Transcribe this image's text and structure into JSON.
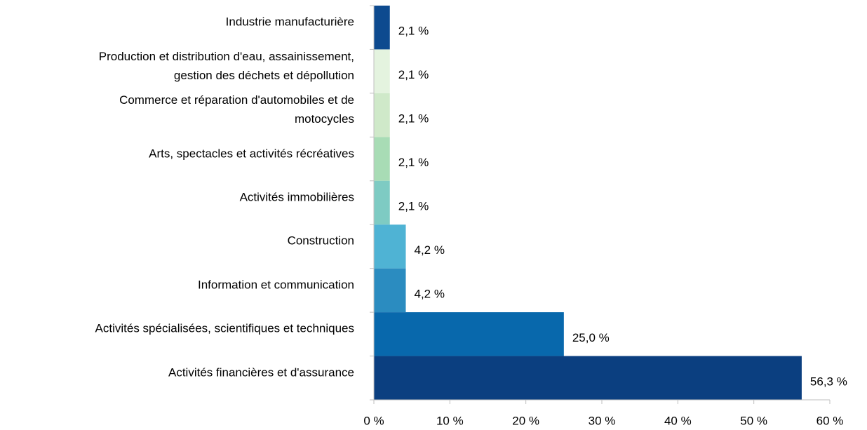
{
  "chart_data": {
    "type": "hbar",
    "categories": [
      "Industrie manufacturière",
      "Production et distribution d'eau, assainissement,\ngestion des déchets et dépollution",
      "Commerce et réparation d'automobiles et de\nmotocycles",
      "Arts, spectacles et activités récréatives",
      "Activités immobilières",
      "Construction",
      "Information et communication",
      "Activités spécialisées, scientifiques et techniques",
      "Activités financières et d'assurance"
    ],
    "values": [
      2.1,
      2.1,
      2.1,
      2.1,
      2.1,
      4.2,
      4.2,
      25.0,
      56.3
    ],
    "value_labels": [
      "2,1 %",
      "2,1 %",
      "2,1 %",
      "2,1 %",
      "2,1 %",
      "4,2 %",
      "4,2 %",
      "25,0 %",
      "56,3 %"
    ],
    "colors": [
      "#0d4a8f",
      "#e4f3df",
      "#cfe9c9",
      "#a8dcb5",
      "#7ecbc3",
      "#4fb3d4",
      "#2b8cc0",
      "#0868ac",
      "#0b3f80"
    ],
    "xlim": [
      0,
      60
    ],
    "xticks": [
      {
        "value": 0,
        "label": "0 %"
      },
      {
        "value": 10,
        "label": "10 %"
      },
      {
        "value": 20,
        "label": "20 %"
      },
      {
        "value": 30,
        "label": "30 %"
      },
      {
        "value": 40,
        "label": "40 %"
      },
      {
        "value": 50,
        "label": "50 %"
      },
      {
        "value": 60,
        "label": "60 %"
      }
    ]
  }
}
